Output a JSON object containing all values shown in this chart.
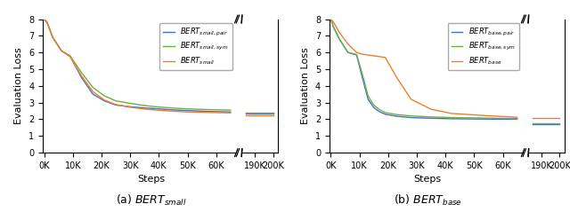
{
  "left_panel": {
    "title": "(a) $BERT_{small}$",
    "legend": [
      "$BERT_{small, pair}$",
      "$BERT_{small, sym}$",
      "$BERT_{small}$"
    ],
    "colors": [
      "#4472c4",
      "#70ad47",
      "#ed7d31"
    ],
    "ylabel": "Evaluation Loss",
    "xlabel": "Steps",
    "ylim": [
      0,
      8
    ],
    "yticks": [
      0,
      1,
      2,
      3,
      4,
      5,
      6,
      7,
      8
    ],
    "main_xticks": [
      0,
      10000,
      20000,
      30000,
      40000,
      50000,
      60000
    ],
    "main_xlabels": [
      "0K",
      "10K",
      "20K",
      "30K",
      "40K",
      "50K",
      "60K"
    ],
    "ext_xticks": [
      190000,
      200000
    ],
    "ext_xlabels": [
      "190K",
      "200K"
    ],
    "pair_vals_main": [
      8.0,
      7.8,
      6.9,
      6.1,
      5.8,
      4.5,
      3.5,
      3.1,
      2.85,
      2.75,
      2.68,
      2.62,
      2.56,
      2.52,
      2.47,
      2.44
    ],
    "pair_vals_ext": [
      2.33,
      2.33
    ],
    "sym_vals_main": [
      8.0,
      7.8,
      6.9,
      6.1,
      5.8,
      4.8,
      3.9,
      3.4,
      3.1,
      2.95,
      2.82,
      2.73,
      2.67,
      2.62,
      2.58,
      2.55
    ],
    "sym_vals_ext": [
      2.37,
      2.37
    ],
    "base_vals_main": [
      8.0,
      7.8,
      6.9,
      6.1,
      5.75,
      4.6,
      3.65,
      3.15,
      2.88,
      2.72,
      2.61,
      2.54,
      2.48,
      2.44,
      2.41,
      2.38
    ],
    "base_vals_ext": [
      2.23,
      2.23
    ],
    "steps_main": [
      0,
      1000,
      3000,
      6000,
      9000,
      13000,
      17000,
      21000,
      25000,
      30000,
      35000,
      40000,
      45000,
      50000,
      57000,
      65000
    ],
    "steps_ext": [
      185000,
      200000
    ]
  },
  "right_panel": {
    "title": "(b) $BERT_{base}$",
    "legend": [
      "$BERT_{base, pair}$",
      "$BERT_{base, sym}$",
      "$BERT_{base}$"
    ],
    "colors": [
      "#4472c4",
      "#70ad47",
      "#ed7d31"
    ],
    "ylabel": "Evaluation Loss",
    "xlabel": "Steps",
    "ylim": [
      0,
      8
    ],
    "yticks": [
      0,
      1,
      2,
      3,
      4,
      5,
      6,
      7,
      8
    ],
    "main_xticks": [
      0,
      10000,
      20000,
      30000,
      40000,
      50000,
      60000
    ],
    "main_xlabels": [
      "0K",
      "10K",
      "20K",
      "30K",
      "40K",
      "50K",
      "60K"
    ],
    "ext_xticks": [
      190000,
      200000
    ],
    "ext_xlabels": [
      "190K",
      "200K"
    ],
    "pair_vals_main": [
      8.0,
      7.5,
      6.8,
      6.0,
      5.85,
      4.5,
      3.2,
      2.7,
      2.45,
      2.3,
      2.18,
      2.1,
      2.06,
      2.03,
      2.01,
      2.0
    ],
    "pair_vals_ext": [
      1.73,
      1.73
    ],
    "sym_vals_main": [
      8.0,
      7.5,
      6.8,
      6.0,
      5.88,
      4.7,
      3.4,
      2.85,
      2.58,
      2.4,
      2.28,
      2.2,
      2.14,
      2.1,
      2.07,
      2.04
    ],
    "sym_vals_ext": [
      1.75,
      1.75
    ],
    "base_vals_main": [
      8.0,
      7.8,
      7.2,
      6.5,
      6.0,
      5.9,
      5.85,
      5.8,
      5.75,
      5.7,
      4.5,
      3.2,
      2.6,
      2.35,
      2.22,
      2.12
    ],
    "base_vals_ext": [
      2.07,
      2.07
    ],
    "steps_main": [
      0,
      1000,
      3000,
      6000,
      9000,
      11000,
      13000,
      15000,
      17000,
      19000,
      23000,
      28000,
      35000,
      42000,
      54000,
      65000
    ],
    "steps_ext": [
      185000,
      200000
    ]
  }
}
